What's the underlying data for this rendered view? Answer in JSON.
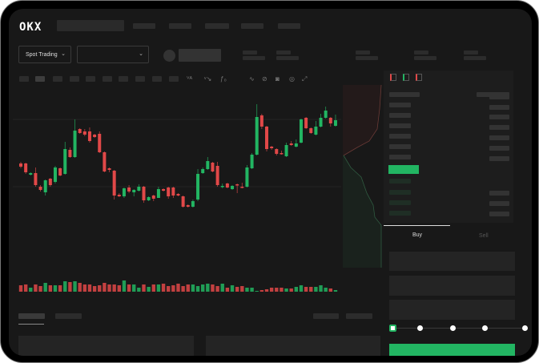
{
  "header": {
    "logo": "OKX",
    "nav_items": 5
  },
  "market_bar": {
    "mode_dropdown": "Spot Trading",
    "pair_dropdown": ""
  },
  "toolbar": {
    "icons": [
      "indicator-icon",
      "indicator-icon",
      "fx-icon",
      "line-icon",
      "pencil-icon",
      "camera-icon",
      "settings-icon",
      "fullscreen-icon"
    ]
  },
  "orderbook": {
    "view_icons": [
      "orderbook-both-icon",
      "orderbook-bids-icon",
      "orderbook-asks-icon"
    ]
  },
  "trade": {
    "tabs": [
      {
        "label": "Buy",
        "active": true
      },
      {
        "label": "Sell",
        "active": false
      }
    ],
    "slider_level": 0,
    "slider_marks": [
      0,
      25,
      50,
      75,
      100
    ]
  },
  "colors": {
    "up": "#22b562",
    "down": "#e14848",
    "background": "#181818",
    "panel": "#1d1d1d"
  },
  "chart_data": {
    "type": "candlestick",
    "candles": [
      [
        97,
        99,
        91,
        93
      ],
      [
        97,
        98,
        84,
        86
      ],
      [
        83,
        86,
        82,
        85
      ],
      [
        85,
        92,
        68,
        70
      ],
      [
        68,
        70,
        62,
        64
      ],
      [
        61,
        77,
        57,
        76
      ],
      [
        78,
        79,
        68,
        70
      ],
      [
        74,
        94,
        72,
        92
      ],
      [
        91,
        92,
        81,
        82
      ],
      [
        84,
        124,
        83,
        115
      ],
      [
        114,
        117,
        104,
        105
      ],
      [
        105,
        152,
        104,
        138
      ],
      [
        140,
        141,
        134,
        135
      ],
      [
        137,
        140,
        131,
        133
      ],
      [
        137,
        142,
        123,
        125
      ],
      [
        133,
        134,
        129,
        130
      ],
      [
        134,
        137,
        110,
        111
      ],
      [
        111,
        112,
        86,
        87
      ],
      [
        91,
        92,
        86,
        89
      ],
      [
        88,
        89,
        52,
        57
      ],
      [
        58,
        60,
        55,
        56
      ],
      [
        56,
        67,
        54,
        66
      ],
      [
        67,
        70,
        60,
        62
      ],
      [
        61,
        65,
        56,
        64
      ],
      [
        63,
        71,
        62,
        68
      ],
      [
        68,
        69,
        48,
        51
      ],
      [
        51,
        56,
        50,
        55
      ],
      [
        57,
        58,
        50,
        53
      ],
      [
        54,
        68,
        54,
        65
      ],
      [
        65,
        66,
        62,
        63
      ],
      [
        67,
        68,
        53,
        56
      ],
      [
        67,
        68,
        54,
        57
      ],
      [
        59,
        60,
        56,
        57
      ],
      [
        56,
        57,
        42,
        43
      ],
      [
        45,
        46,
        42,
        43
      ],
      [
        43,
        52,
        42,
        50
      ],
      [
        52,
        90,
        50,
        84
      ],
      [
        85,
        92,
        84,
        90
      ],
      [
        90,
        105,
        89,
        100
      ],
      [
        98,
        99,
        86,
        87
      ],
      [
        94,
        99,
        68,
        70
      ],
      [
        68,
        72,
        66,
        69
      ],
      [
        72,
        73,
        66,
        67
      ],
      [
        65,
        70,
        64,
        69
      ],
      [
        71,
        72,
        60,
        70
      ],
      [
        68,
        73,
        66,
        67
      ],
      [
        68,
        95,
        67,
        92
      ],
      [
        91,
        110,
        90,
        108
      ],
      [
        108,
        171,
        107,
        155
      ],
      [
        157,
        159,
        140,
        143
      ],
      [
        143,
        144,
        112,
        115
      ],
      [
        118,
        119,
        114,
        116
      ],
      [
        115,
        116,
        107,
        109
      ],
      [
        110,
        113,
        108,
        109
      ],
      [
        106,
        123,
        105,
        120
      ],
      [
        122,
        125,
        119,
        120
      ],
      [
        118,
        127,
        117,
        122
      ],
      [
        123,
        153,
        122,
        152
      ],
      [
        154,
        155,
        140,
        141
      ],
      [
        141,
        142,
        134,
        135
      ],
      [
        133,
        150,
        132,
        143
      ],
      [
        143,
        159,
        142,
        154
      ],
      [
        154,
        168,
        153,
        163
      ],
      [
        154,
        155,
        143,
        147
      ],
      [
        144,
        158,
        143,
        151
      ]
    ],
    "volume": [
      8,
      9,
      5,
      9,
      7,
      11,
      8,
      8,
      8,
      13,
      12,
      13,
      11,
      9,
      9,
      7,
      8,
      11,
      9,
      9,
      8,
      14,
      9,
      9,
      5,
      9,
      6,
      9,
      9,
      10,
      7,
      8,
      10,
      7,
      9,
      9,
      7,
      9,
      10,
      9,
      7,
      10,
      5,
      8,
      6,
      7,
      5,
      5,
      1,
      2,
      3,
      5,
      5,
      5,
      4,
      4,
      6,
      8,
      6,
      6,
      6,
      8,
      5,
      4,
      2
    ],
    "grid": true
  }
}
